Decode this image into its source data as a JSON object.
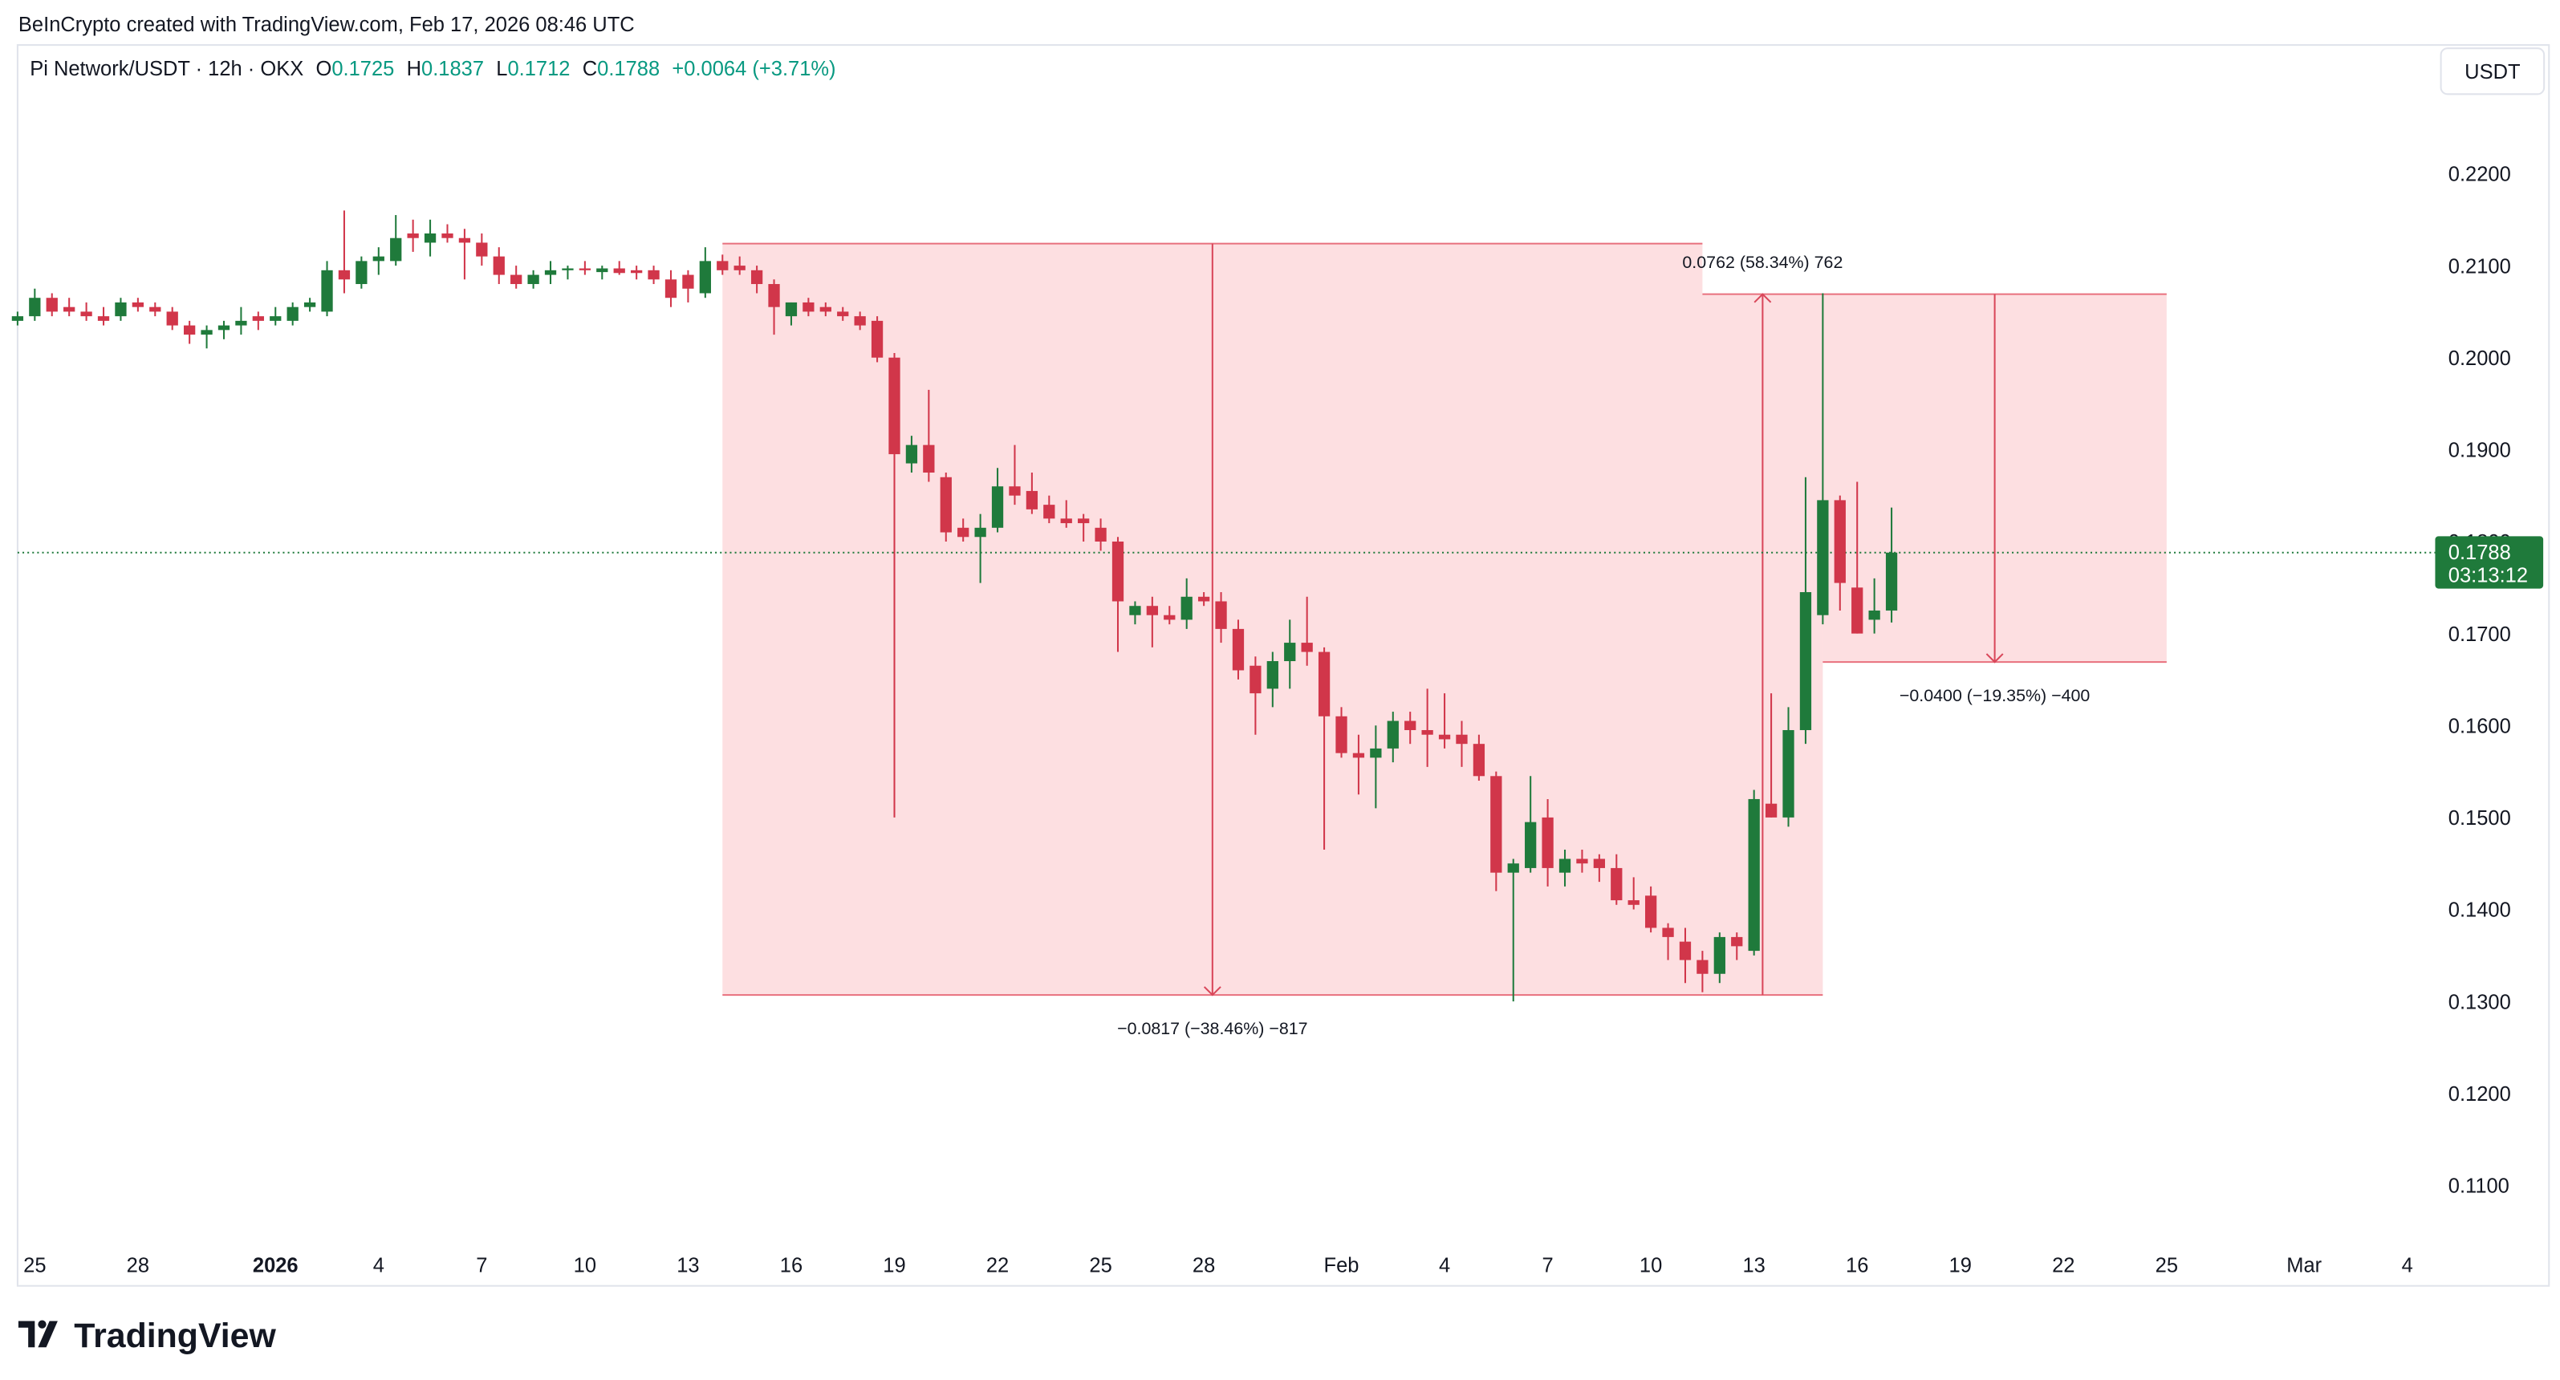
{
  "header": {
    "credit": "BeInCrypto created with TradingView.com, Feb 17, 2026 08:46 UTC",
    "symbol": "Pi Network/USDT · 12h · OKX",
    "ohlc": [
      {
        "label": "O",
        "value": "0.1725"
      },
      {
        "label": "H",
        "value": "0.1837"
      },
      {
        "label": "L",
        "value": "0.1712"
      },
      {
        "label": "C",
        "value": "0.1788"
      }
    ],
    "change": "+0.0064 (+3.71%)",
    "currency": "USDT"
  },
  "footer": {
    "brand": "TradingView"
  },
  "chart_data": {
    "type": "candlestick",
    "up_color": "#1f7a3b",
    "down_color": "#d1364a",
    "x": [
      "2025-12-24T12:00",
      "2025-12-25T00:00",
      "2025-12-25T12:00",
      "2025-12-26T00:00",
      "2025-12-26T12:00",
      "2025-12-27T00:00",
      "2025-12-27T12:00",
      "2025-12-28T00:00",
      "2025-12-28T12:00",
      "2025-12-29T00:00",
      "2025-12-29T12:00",
      "2025-12-30T00:00",
      "2025-12-30T12:00",
      "2025-12-31T00:00",
      "2025-12-31T12:00",
      "2026-01-01T00:00",
      "2026-01-01T12:00",
      "2026-01-02T00:00",
      "2026-01-02T12:00",
      "2026-01-03T00:00",
      "2026-01-03T12:00",
      "2026-01-04T00:00",
      "2026-01-04T12:00",
      "2026-01-05T00:00",
      "2026-01-05T12:00",
      "2026-01-06T00:00",
      "2026-01-06T12:00",
      "2026-01-07T00:00",
      "2026-01-07T12:00",
      "2026-01-08T00:00",
      "2026-01-08T12:00",
      "2026-01-09T00:00",
      "2026-01-09T12:00",
      "2026-01-10T00:00",
      "2026-01-10T12:00",
      "2026-01-11T00:00",
      "2026-01-11T12:00",
      "2026-01-12T00:00",
      "2026-01-12T12:00",
      "2026-01-13T00:00",
      "2026-01-13T12:00",
      "2026-01-14T00:00",
      "2026-01-14T12:00",
      "2026-01-15T00:00",
      "2026-01-15T12:00",
      "2026-01-16T00:00",
      "2026-01-16T12:00",
      "2026-01-17T00:00",
      "2026-01-17T12:00",
      "2026-01-18T00:00",
      "2026-01-18T12:00",
      "2026-01-19T00:00",
      "2026-01-19T12:00",
      "2026-01-20T00:00",
      "2026-01-20T12:00",
      "2026-01-21T00:00",
      "2026-01-21T12:00",
      "2026-01-22T00:00",
      "2026-01-22T12:00",
      "2026-01-23T00:00",
      "2026-01-23T12:00",
      "2026-01-24T00:00",
      "2026-01-24T12:00",
      "2026-01-25T00:00",
      "2026-01-25T12:00",
      "2026-01-26T00:00",
      "2026-01-26T12:00",
      "2026-01-27T00:00",
      "2026-01-27T12:00",
      "2026-01-28T00:00",
      "2026-01-28T12:00",
      "2026-01-29T00:00",
      "2026-01-29T12:00",
      "2026-01-30T00:00",
      "2026-01-30T12:00",
      "2026-01-31T00:00",
      "2026-01-31T12:00",
      "2026-02-01T00:00",
      "2026-02-01T12:00",
      "2026-02-02T00:00",
      "2026-02-02T12:00",
      "2026-02-03T00:00",
      "2026-02-03T12:00",
      "2026-02-04T00:00",
      "2026-02-04T12:00",
      "2026-02-05T00:00",
      "2026-02-05T12:00",
      "2026-02-06T00:00",
      "2026-02-06T12:00",
      "2026-02-07T00:00",
      "2026-02-07T12:00",
      "2026-02-08T00:00",
      "2026-02-08T12:00",
      "2026-02-09T00:00",
      "2026-02-09T12:00",
      "2026-02-10T00:00",
      "2026-02-10T12:00",
      "2026-02-11T00:00",
      "2026-02-11T12:00",
      "2026-02-12T00:00",
      "2026-02-12T12:00",
      "2026-02-13T00:00",
      "2026-02-13T12:00",
      "2026-02-14T00:00",
      "2026-02-14T12:00",
      "2026-02-15T00:00",
      "2026-02-15T12:00",
      "2026-02-16T00:00",
      "2026-02-16T12:00",
      "2026-02-17T00:00"
    ],
    "open": [
      0.204,
      0.2045,
      0.2065,
      0.2055,
      0.205,
      0.2045,
      0.2045,
      0.206,
      0.2055,
      0.205,
      0.2035,
      0.2025,
      0.203,
      0.2035,
      0.2045,
      0.204,
      0.204,
      0.2055,
      0.205,
      0.2095,
      0.208,
      0.2105,
      0.2105,
      0.2135,
      0.2125,
      0.2135,
      0.213,
      0.2125,
      0.211,
      0.209,
      0.208,
      0.209,
      0.2095,
      0.2097,
      0.2093,
      0.2097,
      0.2095,
      0.2095,
      0.2085,
      0.209,
      0.207,
      0.2105,
      0.21,
      0.2095,
      0.208,
      0.2045,
      0.206,
      0.2055,
      0.205,
      0.2045,
      0.204,
      0.2,
      0.1885,
      0.1905,
      0.187,
      0.1815,
      0.1805,
      0.1815,
      0.186,
      0.1855,
      0.184,
      0.1825,
      0.1825,
      0.1815,
      0.18,
      0.172,
      0.173,
      0.172,
      0.1715,
      0.174,
      0.1735,
      0.1705,
      0.1665,
      0.164,
      0.167,
      0.169,
      0.168,
      0.161,
      0.157,
      0.1565,
      0.1575,
      0.1605,
      0.1595,
      0.159,
      0.159,
      0.158,
      0.1545,
      0.144,
      0.1445,
      0.15,
      0.144,
      0.1455,
      0.1455,
      0.1445,
      0.141,
      0.1415,
      0.138,
      0.1365,
      0.1345,
      0.133,
      0.137,
      0.1355,
      0.1515,
      0.15,
      0.1595,
      0.172,
      0.1845,
      0.175,
      0.1715,
      0.1725
    ],
    "high": [
      0.205,
      0.2075,
      0.207,
      0.2065,
      0.206,
      0.2055,
      0.2065,
      0.2065,
      0.206,
      0.2055,
      0.204,
      0.2035,
      0.204,
      0.2055,
      0.205,
      0.2055,
      0.206,
      0.2065,
      0.2105,
      0.216,
      0.211,
      0.212,
      0.2155,
      0.215,
      0.215,
      0.2145,
      0.214,
      0.2135,
      0.212,
      0.21,
      0.2095,
      0.2105,
      0.21,
      0.2105,
      0.21,
      0.2105,
      0.21,
      0.21,
      0.2095,
      0.2095,
      0.212,
      0.2112,
      0.211,
      0.21,
      0.2085,
      0.206,
      0.2065,
      0.206,
      0.2055,
      0.205,
      0.2045,
      0.2005,
      0.1915,
      0.1965,
      0.1875,
      0.1825,
      0.183,
      0.188,
      0.1905,
      0.1875,
      0.185,
      0.1845,
      0.183,
      0.1825,
      0.1805,
      0.1735,
      0.174,
      0.173,
      0.176,
      0.1745,
      0.1745,
      0.1715,
      0.1675,
      0.168,
      0.1715,
      0.174,
      0.1685,
      0.162,
      0.159,
      0.16,
      0.1615,
      0.1615,
      0.164,
      0.1635,
      0.1605,
      0.159,
      0.155,
      0.1455,
      0.1545,
      0.152,
      0.1465,
      0.1465,
      0.146,
      0.146,
      0.1435,
      0.1425,
      0.1385,
      0.138,
      0.1355,
      0.1375,
      0.1375,
      0.153,
      0.1635,
      0.162,
      0.187,
      0.207,
      0.185,
      0.1865,
      0.176,
      0.1837
    ],
    "low": [
      0.2035,
      0.204,
      0.2045,
      0.2045,
      0.204,
      0.2035,
      0.204,
      0.205,
      0.2045,
      0.203,
      0.2015,
      0.201,
      0.202,
      0.2025,
      0.203,
      0.2035,
      0.2035,
      0.205,
      0.2045,
      0.207,
      0.2075,
      0.209,
      0.21,
      0.2115,
      0.211,
      0.2125,
      0.2085,
      0.21,
      0.208,
      0.2075,
      0.2075,
      0.208,
      0.2085,
      0.209,
      0.2085,
      0.209,
      0.2085,
      0.208,
      0.2055,
      0.206,
      0.2065,
      0.209,
      0.209,
      0.207,
      0.2025,
      0.2035,
      0.2045,
      0.2045,
      0.204,
      0.203,
      0.1995,
      0.15,
      0.1875,
      0.1865,
      0.18,
      0.18,
      0.1755,
      0.181,
      0.184,
      0.183,
      0.182,
      0.1815,
      0.18,
      0.179,
      0.168,
      0.171,
      0.1685,
      0.171,
      0.1705,
      0.173,
      0.169,
      0.165,
      0.159,
      0.162,
      0.164,
      0.1665,
      0.1465,
      0.1565,
      0.1525,
      0.151,
      0.156,
      0.158,
      0.1555,
      0.1575,
      0.1555,
      0.154,
      0.142,
      0.13,
      0.144,
      0.1425,
      0.1425,
      0.144,
      0.143,
      0.1405,
      0.14,
      0.1375,
      0.1345,
      0.132,
      0.131,
      0.132,
      0.1345,
      0.135,
      0.15,
      0.149,
      0.158,
      0.171,
      0.1725,
      0.17,
      0.17,
      0.1712
    ],
    "close": [
      0.2045,
      0.2065,
      0.205,
      0.205,
      0.2045,
      0.204,
      0.206,
      0.2055,
      0.205,
      0.2035,
      0.2025,
      0.203,
      0.2035,
      0.204,
      0.204,
      0.2045,
      0.2055,
      0.206,
      0.2095,
      0.2085,
      0.2105,
      0.211,
      0.213,
      0.213,
      0.2135,
      0.213,
      0.2125,
      0.211,
      0.209,
      0.208,
      0.209,
      0.2095,
      0.2097,
      0.2095,
      0.2097,
      0.2092,
      0.2092,
      0.2085,
      0.2065,
      0.2075,
      0.2105,
      0.2095,
      0.2095,
      0.208,
      0.2055,
      0.206,
      0.205,
      0.205,
      0.2045,
      0.2035,
      0.2,
      0.1895,
      0.1905,
      0.1875,
      0.181,
      0.1805,
      0.1815,
      0.186,
      0.185,
      0.1835,
      0.1825,
      0.182,
      0.182,
      0.18,
      0.1735,
      0.173,
      0.172,
      0.1715,
      0.174,
      0.1735,
      0.1705,
      0.166,
      0.1635,
      0.167,
      0.169,
      0.168,
      0.161,
      0.157,
      0.1565,
      0.1575,
      0.1605,
      0.1595,
      0.159,
      0.1585,
      0.158,
      0.1545,
      0.144,
      0.145,
      0.1495,
      0.1445,
      0.1455,
      0.145,
      0.1445,
      0.141,
      0.1405,
      0.138,
      0.137,
      0.1345,
      0.133,
      0.137,
      0.136,
      0.152,
      0.15,
      0.1595,
      0.1745,
      0.1845,
      0.1755,
      0.17,
      0.1725,
      0.1788
    ],
    "xlim": [
      "2025-12-24T12:00",
      "2026-03-05T00:00"
    ],
    "xticks": [
      {
        "value": "2025-12-25T00:00",
        "label": "25"
      },
      {
        "value": "2025-12-28T00:00",
        "label": "28"
      },
      {
        "value": "2026-01-01T00:00",
        "label": "2026"
      },
      {
        "value": "2026-01-04T00:00",
        "label": "4"
      },
      {
        "value": "2026-01-07T00:00",
        "label": "7"
      },
      {
        "value": "2026-01-10T00:00",
        "label": "10"
      },
      {
        "value": "2026-01-13T00:00",
        "label": "13"
      },
      {
        "value": "2026-01-16T00:00",
        "label": "16"
      },
      {
        "value": "2026-01-19T00:00",
        "label": "19"
      },
      {
        "value": "2026-01-22T00:00",
        "label": "22"
      },
      {
        "value": "2026-01-25T00:00",
        "label": "25"
      },
      {
        "value": "2026-01-28T00:00",
        "label": "28"
      },
      {
        "value": "2026-02-01T00:00",
        "label": "Feb"
      },
      {
        "value": "2026-02-04T00:00",
        "label": "4"
      },
      {
        "value": "2026-02-07T00:00",
        "label": "7"
      },
      {
        "value": "2026-02-10T00:00",
        "label": "10"
      },
      {
        "value": "2026-02-13T00:00",
        "label": "13"
      },
      {
        "value": "2026-02-16T00:00",
        "label": "16"
      },
      {
        "value": "2026-02-19T00:00",
        "label": "19"
      },
      {
        "value": "2026-02-22T00:00",
        "label": "22"
      },
      {
        "value": "2026-02-25T00:00",
        "label": "25"
      },
      {
        "value": "2026-03-01T00:00",
        "label": "Mar"
      },
      {
        "value": "2026-03-04T00:00",
        "label": "4"
      }
    ],
    "ylim": [
      0.1045,
      0.2339
    ],
    "yticks": [
      {
        "value": 0.11,
        "label": "0.1100"
      },
      {
        "value": 0.12,
        "label": "0.1200"
      },
      {
        "value": 0.13,
        "label": "0.1300"
      },
      {
        "value": 0.14,
        "label": "0.1400"
      },
      {
        "value": 0.15,
        "label": "0.1500"
      },
      {
        "value": 0.16,
        "label": "0.1600"
      },
      {
        "value": 0.17,
        "label": "0.1700"
      },
      {
        "value": 0.18,
        "label": "0.1800"
      },
      {
        "value": 0.19,
        "label": "0.1900"
      },
      {
        "value": 0.2,
        "label": "0.2000"
      },
      {
        "value": 0.21,
        "label": "0.2100"
      },
      {
        "value": 0.22,
        "label": "0.2200"
      }
    ],
    "last_price": {
      "value": 0.1788,
      "label": "0.1788",
      "countdown": "03:13:12"
    },
    "measures": [
      {
        "x": [
          "2026-01-14T00:00",
          "2026-02-11T12:00"
        ],
        "y": [
          0.2124,
          0.1307
        ],
        "label": "−0.0817 (−38.46%) −817"
      },
      {
        "x": [
          "2026-02-11T12:00",
          "2026-02-15T00:00"
        ],
        "y": [
          0.1307,
          0.2069
        ],
        "label": "0.0762 (58.34%) 762"
      },
      {
        "x": [
          "2026-02-15T00:00",
          "2026-02-25T00:00"
        ],
        "y": [
          0.2069,
          0.1669
        ],
        "label": "−0.0400 (−19.35%) −400"
      }
    ]
  }
}
